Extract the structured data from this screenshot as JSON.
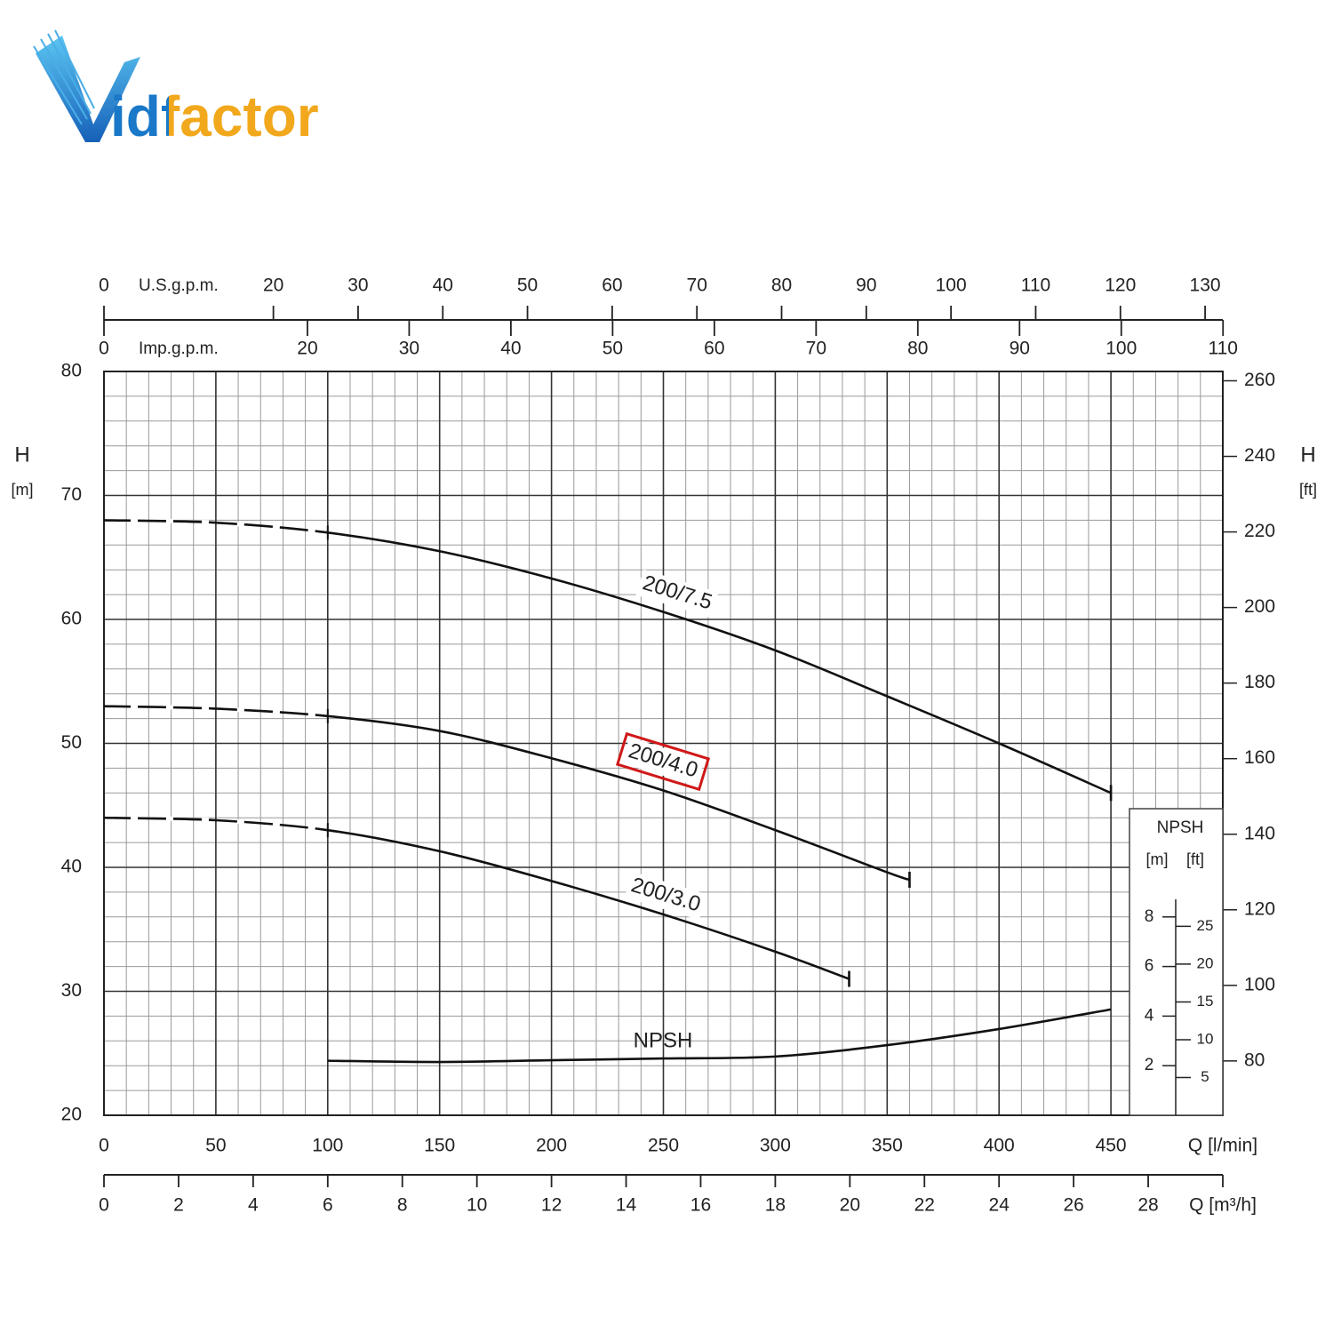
{
  "logo": {
    "text": "idfactor"
  },
  "chart_data": {
    "type": "line",
    "xlim": [
      0,
      500
    ],
    "xticks": [
      0,
      50,
      100,
      150,
      200,
      250,
      300,
      350,
      400,
      450
    ],
    "x_label": "Q [l/min]",
    "ylim": [
      20,
      80
    ],
    "yticks": [
      20,
      30,
      40,
      50,
      60,
      70,
      80
    ],
    "y_label": "H",
    "y_unit": "[m]",
    "y2lim": [
      65.62,
      262.47
    ],
    "y2ticks": [
      80,
      100,
      120,
      140,
      160,
      180,
      200,
      220,
      240,
      260
    ],
    "y2_label": "H",
    "y2_unit": "[ft]",
    "grid": true,
    "minor_grid_step": {
      "x": 10,
      "y": 2
    },
    "dashed_range": [
      0,
      100
    ],
    "top_axes": [
      {
        "label": "U.S.g.p.m.",
        "lim": [
          0,
          132.09
        ],
        "ticks": [
          0,
          20,
          30,
          40,
          50,
          60,
          70,
          80,
          90,
          100,
          110,
          120,
          130
        ]
      },
      {
        "label": "Imp.g.p.m.",
        "lim": [
          0,
          109.98
        ],
        "ticks": [
          0,
          20,
          30,
          40,
          50,
          60,
          70,
          80,
          90,
          100,
          110
        ]
      }
    ],
    "bottom_axis2": {
      "label": "Q [m³/h]",
      "lim": [
        0,
        30
      ],
      "ticks": [
        0,
        2,
        4,
        6,
        8,
        10,
        12,
        14,
        16,
        18,
        20,
        22,
        24,
        26,
        28
      ]
    },
    "npsh_axis": {
      "title": "NPSH",
      "unit": "[m]",
      "ft_unit": "[ft]",
      "lim": [
        0,
        30
      ],
      "ticks": [
        2,
        4,
        6,
        8
      ],
      "ft_lim": [
        0,
        98.43
      ],
      "ft_ticks": [
        5,
        10,
        15,
        20,
        25
      ]
    },
    "series": [
      {
        "name": "200/7.5",
        "color": "#111111",
        "x": [
          0,
          50,
          100,
          150,
          200,
          250,
          300,
          350,
          400,
          450
        ],
        "values": [
          68,
          67.8,
          67,
          65.5,
          63.3,
          60.6,
          57.5,
          53.8,
          50,
          46
        ]
      },
      {
        "name": "200/4.0",
        "color": "#111111",
        "highlight": true,
        "x": [
          0,
          50,
          100,
          150,
          200,
          250,
          300,
          350,
          360
        ],
        "values": [
          53,
          52.8,
          52.2,
          51,
          48.8,
          46.2,
          43,
          39.6,
          39
        ]
      },
      {
        "name": "200/3.0",
        "color": "#111111",
        "x": [
          0,
          50,
          100,
          150,
          200,
          250,
          300,
          333
        ],
        "values": [
          44,
          43.8,
          43,
          41.3,
          38.9,
          36.2,
          33.2,
          31
        ]
      },
      {
        "name": "NPSH",
        "color": "#111111",
        "axis": "npsh",
        "x": [
          100,
          150,
          200,
          250,
          300,
          350,
          400,
          450
        ],
        "values": [
          2.2,
          2.15,
          2.22,
          2.29,
          2.37,
          2.83,
          3.48,
          4.27
        ]
      }
    ]
  }
}
